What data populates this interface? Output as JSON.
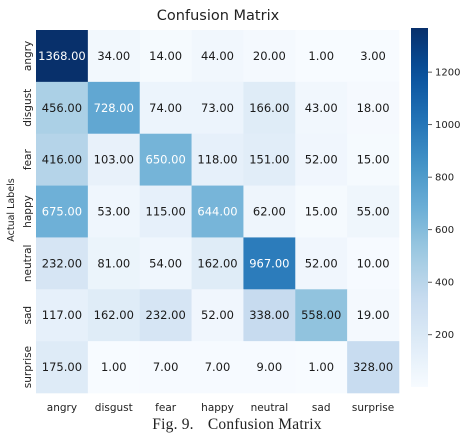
{
  "chart_data": {
    "type": "heatmap",
    "title": "Confusion Matrix",
    "ylabel": "Actual Labels",
    "xlabel": "",
    "x_categories": [
      "angry",
      "disgust",
      "fear",
      "happy",
      "neutral",
      "sad",
      "surprise"
    ],
    "y_categories": [
      "angry",
      "disgust",
      "fear",
      "happy",
      "neutral",
      "sad",
      "surprise"
    ],
    "values": [
      [
        1368,
        34,
        14,
        44,
        20,
        1,
        3
      ],
      [
        456,
        728,
        74,
        73,
        166,
        43,
        18
      ],
      [
        416,
        103,
        650,
        118,
        151,
        52,
        15
      ],
      [
        675,
        53,
        115,
        644,
        62,
        15,
        55
      ],
      [
        232,
        81,
        54,
        162,
        967,
        52,
        10
      ],
      [
        117,
        162,
        232,
        52,
        338,
        558,
        19
      ],
      [
        175,
        1,
        7,
        7,
        9,
        1,
        328
      ]
    ],
    "value_labels": [
      [
        "1368.00",
        "34.00",
        "14.00",
        "44.00",
        "20.00",
        "1.00",
        "3.00"
      ],
      [
        "456.00",
        "728.00",
        "74.00",
        "73.00",
        "166.00",
        "43.00",
        "18.00"
      ],
      [
        "416.00",
        "103.00",
        "650.00",
        "118.00",
        "151.00",
        "52.00",
        "15.00"
      ],
      [
        "675.00",
        "53.00",
        "115.00",
        "644.00",
        "62.00",
        "15.00",
        "55.00"
      ],
      [
        "232.00",
        "81.00",
        "54.00",
        "162.00",
        "967.00",
        "52.00",
        "10.00"
      ],
      [
        "117.00",
        "162.00",
        "232.00",
        "52.00",
        "338.00",
        "558.00",
        "19.00"
      ],
      [
        "175.00",
        "1.00",
        "7.00",
        "7.00",
        "9.00",
        "1.00",
        "328.00"
      ]
    ],
    "colorbar": {
      "range": [
        1,
        1368
      ],
      "ticks": [
        200,
        400,
        600,
        800,
        1000,
        1200
      ],
      "colormap": "Blues"
    }
  },
  "caption": {
    "figure_number": "Fig. 9.",
    "text": "Confusion Matrix"
  }
}
